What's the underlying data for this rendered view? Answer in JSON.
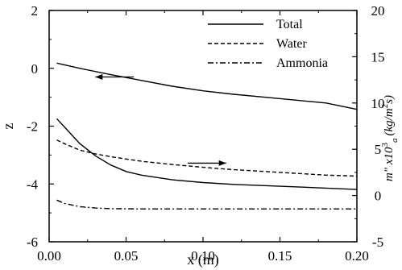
{
  "chart_data": {
    "type": "line",
    "xlabel": "x (m)",
    "ylabel_left": "z",
    "ylabel_right_base": "m\" x10",
    "ylabel_right_sub": "a",
    "ylabel_right_sup": "3",
    "ylabel_right_unit": "(kg/m",
    "ylabel_right_unit_sup": "2",
    "ylabel_right_unit_end": "s)",
    "xlim": [
      0.0,
      0.2
    ],
    "ylim_left": [
      -6,
      2
    ],
    "ylim_right": [
      -5,
      20
    ],
    "x_ticks": [
      0.0,
      0.05,
      0.1,
      0.15,
      0.2
    ],
    "x_tick_labels": [
      "0.00",
      "0.05",
      "0.10",
      "0.15",
      "0.20"
    ],
    "y_left_ticks": [
      2,
      0,
      -2,
      -4,
      -6
    ],
    "y_left_tick_labels": [
      "2",
      "0",
      "-2",
      "-4",
      "-6"
    ],
    "y_right_ticks": [
      20,
      15,
      10,
      5,
      0,
      -5
    ],
    "y_right_tick_labels": [
      "20",
      "15",
      "10",
      "5",
      "0",
      "-5"
    ],
    "legend": [
      {
        "label": "Total",
        "style": "solid"
      },
      {
        "label": "Water",
        "style": "dashed"
      },
      {
        "label": "Ammonia",
        "style": "dashdot"
      }
    ],
    "series": [
      {
        "name": "Total",
        "axis": "left",
        "style": "solid",
        "x": [
          0.005,
          0.02,
          0.04,
          0.06,
          0.08,
          0.1,
          0.12,
          0.14,
          0.16,
          0.18,
          0.2
        ],
        "y": [
          0.18,
          0.0,
          -0.22,
          -0.42,
          -0.62,
          -0.78,
          -0.9,
          -1.0,
          -1.1,
          -1.2,
          -1.42
        ]
      },
      {
        "name": "Total",
        "axis": "right",
        "style": "solid",
        "x": [
          0.005,
          0.01,
          0.02,
          0.03,
          0.04,
          0.05,
          0.06,
          0.08,
          0.1,
          0.12,
          0.15,
          0.18,
          0.2
        ],
        "y": [
          8.3,
          7.4,
          5.6,
          4.3,
          3.3,
          2.6,
          2.2,
          1.7,
          1.4,
          1.2,
          1.0,
          0.8,
          0.65
        ]
      },
      {
        "name": "Water",
        "axis": "right",
        "style": "dashed",
        "x": [
          0.005,
          0.01,
          0.02,
          0.03,
          0.04,
          0.05,
          0.06,
          0.08,
          0.1,
          0.12,
          0.15,
          0.18,
          0.2
        ],
        "y": [
          6.0,
          5.6,
          4.9,
          4.5,
          4.2,
          3.95,
          3.7,
          3.35,
          3.05,
          2.8,
          2.5,
          2.2,
          2.1
        ]
      },
      {
        "name": "Ammonia",
        "axis": "right",
        "style": "dashdot",
        "x": [
          0.005,
          0.01,
          0.02,
          0.03,
          0.04,
          0.06,
          0.08,
          0.1,
          0.15,
          0.2
        ],
        "y": [
          -0.5,
          -0.85,
          -1.2,
          -1.35,
          -1.42,
          -1.45,
          -1.45,
          -1.45,
          -1.45,
          -1.45
        ]
      }
    ],
    "arrows": [
      {
        "direction": "left",
        "axis": "left",
        "x_from": 0.055,
        "x_to": 0.03,
        "y": -0.3
      },
      {
        "direction": "right",
        "axis": "right",
        "x_from": 0.09,
        "x_to": 0.115,
        "y": 3.5
      }
    ],
    "grid": false,
    "legend_position": "top-right"
  }
}
